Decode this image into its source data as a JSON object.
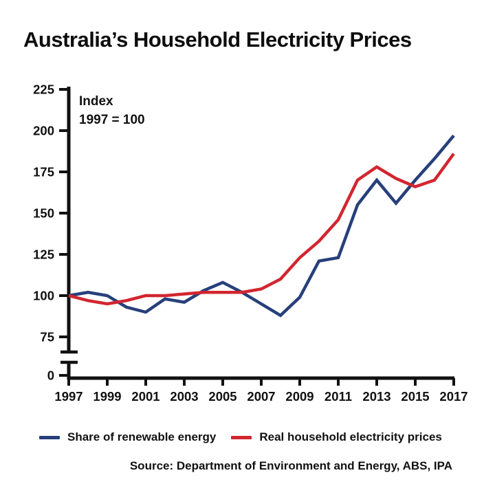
{
  "title": "Australia’s Household Electricity Prices",
  "annotation": {
    "line1": "Index",
    "line2": "1997 = 100"
  },
  "legend": {
    "items": [
      {
        "label": "Share of renewable energy",
        "color": "#27407b"
      },
      {
        "label": "Real household electricity prices",
        "color": "#d22630"
      }
    ]
  },
  "source": "Source: Department of Environment and Energy, ABS, IPA",
  "colors": {
    "axis": "#111111",
    "text": "#111111",
    "background": "#ffffff",
    "blue_series": "#27407b",
    "red_series": "#d22630"
  },
  "chart_data": {
    "type": "line",
    "title": "Australia’s Household Electricity Prices",
    "ylabel": "Index 1997 = 100",
    "xlabel": "",
    "grid": false,
    "legend_position": "bottom",
    "axis_break": true,
    "ylim_main": [
      75,
      225
    ],
    "yticks": [
      225,
      200,
      175,
      150,
      125,
      100,
      75
    ],
    "extra_ytick": 0,
    "xticks": [
      1997,
      1999,
      2001,
      2003,
      2005,
      2007,
      2009,
      2011,
      2013,
      2015,
      2017
    ],
    "x": [
      1997,
      1998,
      1999,
      2000,
      2001,
      2002,
      2003,
      2004,
      2005,
      2006,
      2007,
      2008,
      2009,
      2010,
      2011,
      2012,
      2013,
      2014,
      2015,
      2016,
      2017
    ],
    "series": [
      {
        "name": "Share of renewable energy",
        "color": "#27407b",
        "values": [
          100,
          102,
          100,
          93,
          90,
          98,
          96,
          103,
          108,
          102,
          95,
          88,
          99,
          121,
          123,
          155,
          170,
          156,
          170,
          183,
          197
        ]
      },
      {
        "name": "Real household electricity prices",
        "color": "#d22630",
        "values": [
          100,
          97,
          95,
          97,
          100,
          100,
          101,
          102,
          102,
          102,
          104,
          110,
          123,
          133,
          146,
          170,
          178,
          171,
          166,
          170,
          186
        ]
      }
    ]
  }
}
